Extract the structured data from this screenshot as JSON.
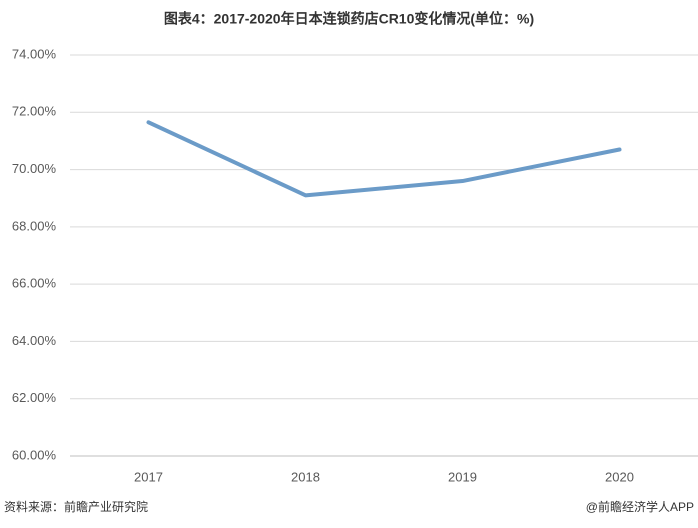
{
  "chart_data": {
    "type": "line",
    "title": "图表4：2017-2020年日本连锁药店CR10变化情况(单位：%)",
    "categories": [
      "2017",
      "2018",
      "2019",
      "2020"
    ],
    "series": [
      {
        "name": "CR10",
        "color": "#6b9bc8",
        "values": [
          71.65,
          69.1,
          69.6,
          70.7
        ]
      }
    ],
    "ylim": [
      60,
      74
    ],
    "yticks": [
      {
        "value": 60,
        "label": "60.00%"
      },
      {
        "value": 62,
        "label": "62.00%"
      },
      {
        "value": 64,
        "label": "64.00%"
      },
      {
        "value": 66,
        "label": "66.00%"
      },
      {
        "value": 68,
        "label": "68.00%"
      },
      {
        "value": 70,
        "label": "70.00%"
      },
      {
        "value": 72,
        "label": "72.00%"
      },
      {
        "value": 74,
        "label": "74.00%"
      }
    ],
    "grid": true,
    "source": "资料来源：前瞻产业研究院",
    "credit": "@前瞻经济学人APP"
  }
}
